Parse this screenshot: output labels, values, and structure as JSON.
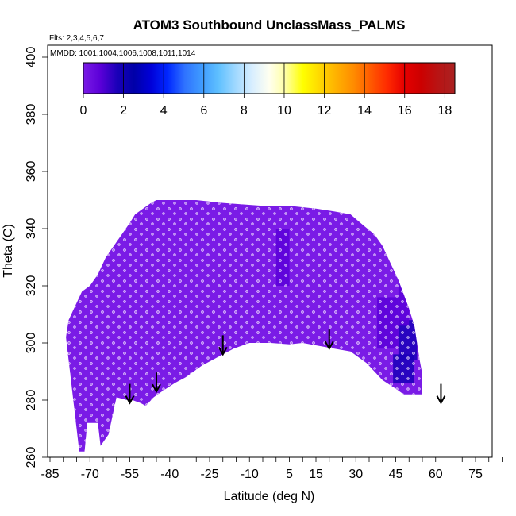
{
  "chart_data": {
    "type": "heatmap",
    "title": "ATOM3 Southbound UnclassMass_PALMS",
    "flights_label": "Flts: 2,3,4,5,6,7",
    "mmdd_label": "MMDD: 1001,1004,1006,1008,1011,1014",
    "xlabel": "Latitude (deg N)",
    "ylabel": "Theta (C)",
    "xlim": [
      -85,
      85
    ],
    "ylim": [
      260,
      404
    ],
    "x_tick_labels": [
      "-85",
      "-70",
      "-55",
      "-40",
      "-25",
      "-10",
      "5",
      "15",
      "30",
      "45",
      "60",
      "75"
    ],
    "x_minor_step": 5,
    "y_tick_labels": [
      "260",
      "280",
      "300",
      "320",
      "340",
      "360",
      "380",
      "400"
    ],
    "colorbar": {
      "range": [
        0,
        18.5
      ],
      "tick_labels": [
        "0",
        "2",
        "4",
        "6",
        "8",
        "10",
        "12",
        "14",
        "16",
        "18"
      ],
      "colors": [
        "#7a1be6",
        "#5b00d8",
        "#1a00b8",
        "#0000a8",
        "#0000d8",
        "#0028ff",
        "#2f72ff",
        "#3f9bff",
        "#5fc0ff",
        "#9fd8ff",
        "#d8eeff",
        "#fffff0",
        "#ffffa0",
        "#ffff00",
        "#ffd800",
        "#ffb000",
        "#ff8c00",
        "#ff5a00",
        "#ff2a00",
        "#e60000",
        "#cc0000",
        "#b81414",
        "#aa2222"
      ]
    },
    "field": {
      "background_value": 0.4,
      "lower_boundary": [
        [
          -74,
          262
        ],
        [
          -72,
          262
        ],
        [
          -71,
          272
        ],
        [
          -67,
          272
        ],
        [
          -66,
          264
        ],
        [
          -63,
          268
        ],
        [
          -60,
          281
        ],
        [
          -56,
          280
        ],
        [
          -54,
          280
        ],
        [
          -51,
          279
        ],
        [
          -49,
          278
        ],
        [
          -46,
          281
        ],
        [
          -43,
          283
        ],
        [
          -38,
          286
        ],
        [
          -34,
          288
        ],
        [
          -28,
          292
        ],
        [
          -22,
          295
        ],
        [
          -16,
          298
        ],
        [
          -10,
          300
        ],
        [
          -2,
          300
        ],
        [
          5,
          299.5
        ],
        [
          10,
          300
        ],
        [
          16,
          299
        ],
        [
          22,
          298
        ],
        [
          28,
          297
        ],
        [
          34,
          293
        ],
        [
          40,
          287
        ],
        [
          45,
          284
        ],
        [
          48,
          282
        ],
        [
          55,
          282
        ]
      ],
      "upper_boundary": [
        [
          -79,
          302
        ],
        [
          -78,
          308
        ],
        [
          -76,
          312
        ],
        [
          -73,
          318
        ],
        [
          -70,
          320
        ],
        [
          -67,
          324
        ],
        [
          -64,
          330
        ],
        [
          -61,
          334
        ],
        [
          -58,
          338
        ],
        [
          -55,
          342
        ],
        [
          -53,
          345
        ],
        [
          -50,
          347
        ],
        [
          -47,
          349
        ],
        [
          -45,
          350
        ],
        [
          -30,
          350
        ],
        [
          -20,
          349
        ],
        [
          -5,
          348
        ],
        [
          5,
          348
        ],
        [
          15,
          347
        ],
        [
          22,
          346
        ],
        [
          28,
          345
        ],
        [
          33,
          341
        ],
        [
          37,
          338
        ],
        [
          40,
          334
        ],
        [
          43,
          328
        ],
        [
          46,
          322
        ],
        [
          48,
          317
        ],
        [
          50,
          312
        ],
        [
          52,
          306
        ],
        [
          53,
          300
        ],
        [
          54,
          294
        ],
        [
          55,
          289
        ]
      ],
      "blue_patches": [
        {
          "x": [
            44,
            52
          ],
          "y": [
            286,
            296
          ],
          "value": 2.3
        },
        {
          "x": [
            46,
            53
          ],
          "y": [
            294,
            308
          ],
          "value": 2.0
        },
        {
          "x": [
            46,
            50
          ],
          "y": [
            306,
            322
          ],
          "value": 1.6
        },
        {
          "x": [
            38,
            46
          ],
          "y": [
            298,
            316
          ],
          "value": 1.2
        },
        {
          "x": [
            0,
            5
          ],
          "y": [
            320,
            340
          ],
          "value": 0.9
        },
        {
          "x": [
            -57,
            -49
          ],
          "y": [
            312,
            330
          ],
          "value": 0.7
        }
      ]
    },
    "arrows_x": [
      -55,
      -45,
      -20,
      20,
      62
    ],
    "arrow_tips_y": [
      279,
      283,
      296,
      298,
      279
    ]
  }
}
